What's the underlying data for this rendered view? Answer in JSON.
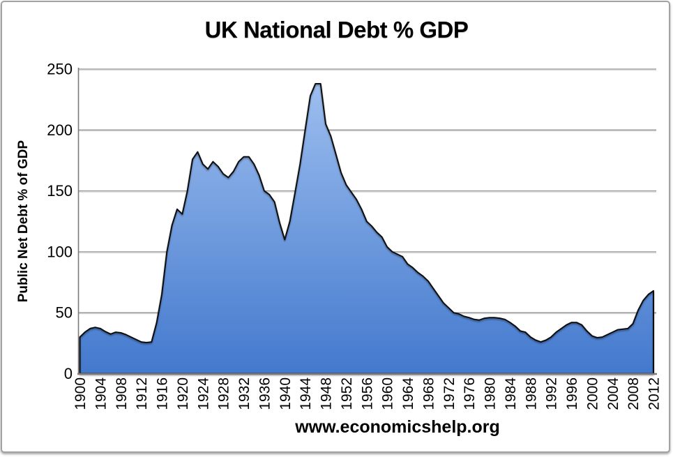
{
  "chart_data": {
    "type": "area",
    "title": "UK National Debt % GDP",
    "ylabel": "Public Net Debt % of GDP",
    "xlabel": "",
    "watermark": "www.economicshelp.org",
    "series_name": "Public Net Debt % of GDP",
    "ylim": [
      0,
      250
    ],
    "yticks": [
      0,
      50,
      100,
      150,
      200,
      250
    ],
    "xticks": [
      1900,
      1904,
      1908,
      1912,
      1916,
      1920,
      1924,
      1928,
      1932,
      1936,
      1940,
      1944,
      1948,
      1952,
      1956,
      1960,
      1964,
      1968,
      1972,
      1976,
      1980,
      1984,
      1988,
      1992,
      1996,
      2000,
      2004,
      2008,
      2012
    ],
    "grid": true,
    "legend": false,
    "x": [
      1900,
      1901,
      1902,
      1903,
      1904,
      1905,
      1906,
      1907,
      1908,
      1909,
      1910,
      1911,
      1912,
      1913,
      1914,
      1915,
      1916,
      1917,
      1918,
      1919,
      1920,
      1921,
      1922,
      1923,
      1924,
      1925,
      1926,
      1927,
      1928,
      1929,
      1930,
      1931,
      1932,
      1933,
      1934,
      1935,
      1936,
      1937,
      1938,
      1939,
      1940,
      1941,
      1942,
      1943,
      1944,
      1945,
      1946,
      1947,
      1948,
      1949,
      1950,
      1951,
      1952,
      1953,
      1954,
      1955,
      1956,
      1957,
      1958,
      1959,
      1960,
      1961,
      1962,
      1963,
      1964,
      1965,
      1966,
      1967,
      1968,
      1969,
      1970,
      1971,
      1972,
      1973,
      1974,
      1975,
      1976,
      1977,
      1978,
      1979,
      1980,
      1981,
      1982,
      1983,
      1984,
      1985,
      1986,
      1987,
      1988,
      1989,
      1990,
      1991,
      1992,
      1993,
      1994,
      1995,
      1996,
      1997,
      1998,
      1999,
      2000,
      2001,
      2002,
      2003,
      2004,
      2005,
      2006,
      2007,
      2008,
      2009,
      2010,
      2011,
      2012
    ],
    "values": [
      30,
      34,
      37,
      38,
      37,
      34.5,
      32.5,
      34,
      33.5,
      32,
      30,
      28,
      26,
      25.5,
      26,
      42,
      65,
      100,
      122,
      135,
      131,
      150,
      176,
      182,
      172,
      168,
      174,
      170,
      164,
      161,
      166,
      174,
      178,
      178,
      172,
      163,
      150,
      147,
      141,
      124,
      110,
      125,
      148,
      172,
      200,
      228,
      238,
      238,
      205,
      195,
      180,
      165,
      155,
      149,
      143,
      135,
      125,
      121,
      116,
      112,
      104,
      100,
      98,
      96,
      90,
      87,
      83,
      80,
      76,
      70,
      64,
      58,
      54,
      50,
      49,
      47,
      46,
      44.5,
      44,
      45.5,
      46,
      46,
      45.5,
      44.5,
      42,
      39,
      35,
      34,
      30,
      27.5,
      26,
      27.5,
      30,
      34,
      37,
      40,
      42,
      42,
      40,
      35,
      31,
      29.5,
      30,
      32,
      34,
      36,
      36.5,
      37,
      41,
      52,
      60,
      65,
      68
    ],
    "colors": {
      "area_gradient_top": "#9dbeef",
      "area_gradient_bottom": "#4379cd",
      "line": "#0a0a0a",
      "gridline": "#8f8f8f",
      "gridline_shadow": "#d2d2d2",
      "axis": "#7a7a7a",
      "text": "#000000"
    }
  }
}
